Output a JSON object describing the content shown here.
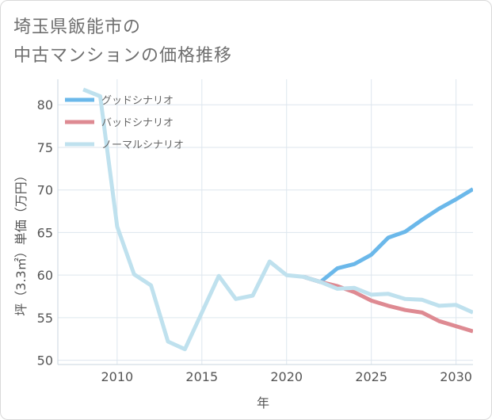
{
  "title_lines": [
    "埼玉県飯能市の",
    "中古マンションの価格推移"
  ],
  "colors": {
    "good": "#6bb8ea",
    "bad": "#de8a92",
    "normal": "#bfe1ee",
    "grid": "#dde6ee",
    "axis": "#c9d6df"
  },
  "chart_data": {
    "type": "line",
    "xlabel": "年",
    "ylabel": "坪（3.3㎡）単価（万円）",
    "xlim": [
      2006.5,
      2031
    ],
    "ylim": [
      49.5,
      83
    ],
    "x_ticks": [
      2010,
      2015,
      2020,
      2025,
      2030
    ],
    "y_ticks": [
      50,
      55,
      60,
      65,
      70,
      75,
      80
    ],
    "grid": true,
    "legend_position": "top-left",
    "series": [
      {
        "name": "グッドシナリオ",
        "color": "#6bb8ea",
        "x": [
          2021,
          2022,
          2023,
          2024,
          2025,
          2026,
          2027,
          2028,
          2029,
          2030,
          2031
        ],
        "y": [
          59.8,
          59.2,
          60.8,
          61.3,
          62.4,
          64.4,
          65.1,
          66.5,
          67.8,
          68.9,
          70.1
        ]
      },
      {
        "name": "バッドシナリオ",
        "color": "#de8a92",
        "x": [
          2021,
          2022,
          2023,
          2024,
          2025,
          2026,
          2027,
          2028,
          2029,
          2030,
          2031
        ],
        "y": [
          59.8,
          59.2,
          58.7,
          58.0,
          57.0,
          56.4,
          55.9,
          55.6,
          54.6,
          54.0,
          53.4
        ]
      },
      {
        "name": "ノーマルシナリオ",
        "color": "#bfe1ee",
        "x": [
          2008,
          2009,
          2010,
          2011,
          2012,
          2013,
          2014,
          2015,
          2016,
          2017,
          2018,
          2019,
          2020,
          2021,
          2022,
          2023,
          2024,
          2025,
          2026,
          2027,
          2028,
          2029,
          2030,
          2031
        ],
        "y": [
          81.8,
          81.0,
          65.7,
          60.1,
          58.8,
          52.2,
          51.3,
          55.6,
          59.9,
          57.2,
          57.6,
          61.6,
          60.0,
          59.8,
          59.2,
          58.4,
          58.5,
          57.7,
          57.8,
          57.2,
          57.1,
          56.4,
          56.5,
          55.6
        ]
      }
    ]
  }
}
